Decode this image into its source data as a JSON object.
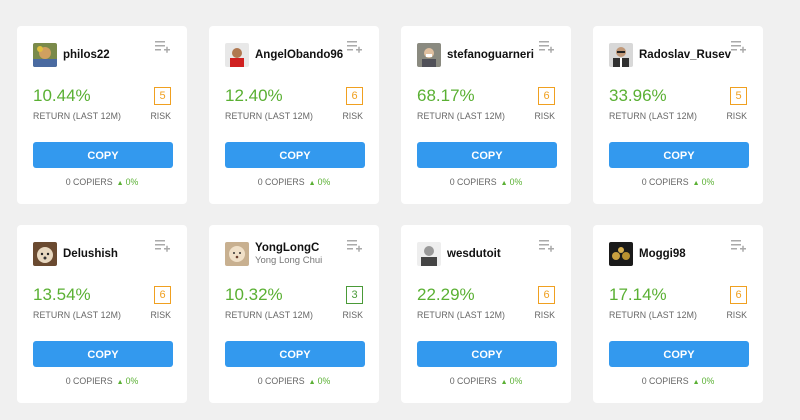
{
  "cards": [
    {
      "username": "philos22",
      "fullname": "",
      "return": "10.44%",
      "return_label": "RETURN (LAST 12M)",
      "risk": "5",
      "risk_label": "RISK",
      "copy_label": "COPY",
      "copiers": "0 COPIERS",
      "change": "0%",
      "avatar": "avatar-photo"
    },
    {
      "username": "AngelObando96",
      "fullname": "",
      "return": "12.40%",
      "return_label": "RETURN (LAST 12M)",
      "risk": "6",
      "risk_label": "RISK",
      "copy_label": "COPY",
      "copiers": "0 COPIERS",
      "change": "0%",
      "avatar": "avatar-photo"
    },
    {
      "username": "stefanoguarneri",
      "fullname": "",
      "return": "68.17%",
      "return_label": "RETURN (LAST 12M)",
      "risk": "6",
      "risk_label": "RISK",
      "copy_label": "COPY",
      "copiers": "0 COPIERS",
      "change": "0%",
      "avatar": "avatar-photo"
    },
    {
      "username": "Radoslav_Rusev",
      "fullname": "",
      "return": "33.96%",
      "return_label": "RETURN (LAST 12M)",
      "risk": "5",
      "risk_label": "RISK",
      "copy_label": "COPY",
      "copiers": "0 COPIERS",
      "change": "0%",
      "avatar": "avatar-photo"
    },
    {
      "username": "Delushish",
      "fullname": "",
      "return": "13.54%",
      "return_label": "RETURN (LAST 12M)",
      "risk": "6",
      "risk_label": "RISK",
      "copy_label": "COPY",
      "copiers": "0 COPIERS",
      "change": "0%",
      "avatar": "avatar-photo"
    },
    {
      "username": "YongLongC",
      "fullname": "Yong Long Chui",
      "return": "10.32%",
      "return_label": "RETURN (LAST 12M)",
      "risk": "3",
      "risk_label": "RISK",
      "copy_label": "COPY",
      "copiers": "0 COPIERS",
      "change": "0%",
      "avatar": "avatar-photo"
    },
    {
      "username": "wesdutoit",
      "fullname": "",
      "return": "22.29%",
      "return_label": "RETURN (LAST 12M)",
      "risk": "6",
      "risk_label": "RISK",
      "copy_label": "COPY",
      "copiers": "0 COPIERS",
      "change": "0%",
      "avatar": "avatar-photo"
    },
    {
      "username": "Moggi98",
      "fullname": "",
      "return": "17.14%",
      "return_label": "RETURN (LAST 12M)",
      "risk": "6",
      "risk_label": "RISK",
      "copy_label": "COPY",
      "copiers": "0 COPIERS",
      "change": "0%",
      "avatar": "avatar-photo"
    }
  ],
  "colors": {
    "return_green": "#5ab033",
    "risk_orange": "#f0a020",
    "risk_green": "#4a9a38",
    "copy_blue": "#3399ee"
  },
  "icons": {
    "add_to_list": "add-to-list-icon",
    "trend_up": "triangle-up-icon"
  }
}
